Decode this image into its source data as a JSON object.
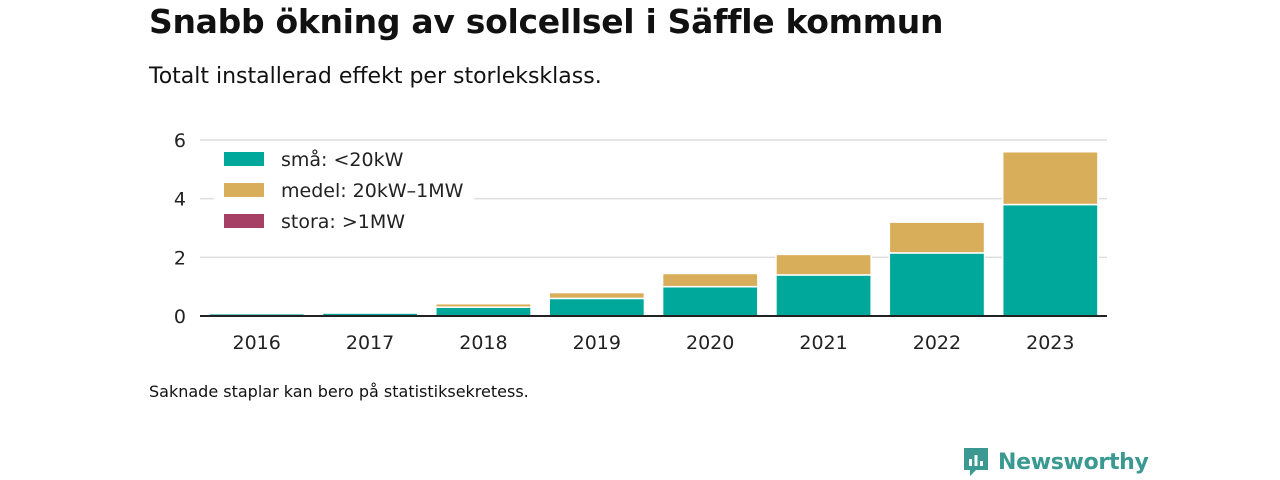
{
  "title": "Snabb ökning av solcellsel i Säffle kommun",
  "subtitle": "Totalt installerad effekt per storleksklass.",
  "footnote": "Saknade staplar kan bero på statistiksekretess.",
  "brand": "Newsworthy",
  "colors": {
    "sma": "#00a89b",
    "medel": "#d9ae5b",
    "stora": "#a64165",
    "grid": "#dddddd",
    "axis": "#222222",
    "brand": "#3a9a92"
  },
  "chart_data": {
    "type": "bar",
    "stacked": true,
    "categories": [
      "2016",
      "2017",
      "2018",
      "2019",
      "2020",
      "2021",
      "2022",
      "2023"
    ],
    "series": [
      {
        "name": "små: <20kW",
        "color": "#00a89b",
        "values": [
          0.08,
          0.1,
          0.3,
          0.6,
          1.0,
          1.4,
          2.15,
          3.8
        ]
      },
      {
        "name": "medel: 20kW–1MW",
        "color": "#d9ae5b",
        "values": [
          0.0,
          0.0,
          0.12,
          0.2,
          0.45,
          0.7,
          1.05,
          1.8
        ]
      },
      {
        "name": "stora: >1MW",
        "color": "#a64165",
        "values": [
          0,
          0,
          0,
          0,
          0,
          0,
          0,
          0
        ]
      }
    ],
    "yticks": [
      0,
      2,
      4,
      6
    ],
    "ylim": [
      0,
      6
    ],
    "grid": true,
    "legend": "top-left"
  }
}
